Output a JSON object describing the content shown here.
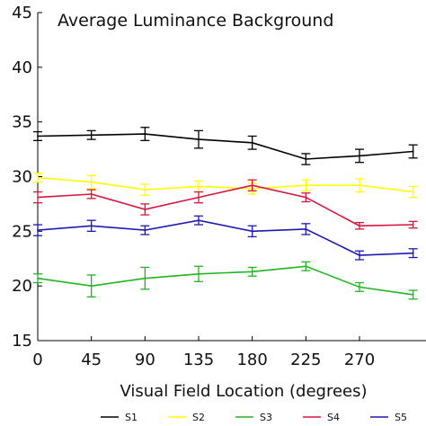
{
  "chart_data": {
    "type": "line",
    "title": "Average Luminance Background",
    "xlabel": "Visual Field Location (degrees)",
    "ylabel": "",
    "x": [
      0,
      45,
      90,
      135,
      180,
      225,
      270,
      315
    ],
    "x_ticks": [
      0,
      45,
      90,
      135,
      180,
      225,
      270
    ],
    "ylim": [
      15,
      45
    ],
    "y_ticks": [
      15,
      20,
      25,
      30,
      35,
      40,
      45
    ],
    "grid": false,
    "legend_placement": "bottom",
    "series": [
      {
        "name": "S1",
        "color": "#000000",
        "values": [
          33.7,
          33.8,
          33.9,
          33.4,
          33.1,
          31.6,
          31.9,
          32.3
        ],
        "errors": [
          0.4,
          0.4,
          0.6,
          0.8,
          0.6,
          0.5,
          0.6,
          0.6
        ]
      },
      {
        "name": "S2",
        "color": "#ffff00",
        "values": [
          29.9,
          29.5,
          28.8,
          29.1,
          28.9,
          29.2,
          29.2,
          28.6
        ],
        "errors": [
          0.4,
          0.6,
          0.5,
          0.5,
          0.5,
          0.5,
          0.6,
          0.5
        ]
      },
      {
        "name": "S3",
        "color": "#22b422",
        "values": [
          20.7,
          20.0,
          20.7,
          21.1,
          21.3,
          21.8,
          19.9,
          19.2
        ],
        "errors": [
          0.4,
          1.0,
          1.0,
          0.7,
          0.4,
          0.4,
          0.4,
          0.4
        ]
      },
      {
        "name": "S4",
        "color": "#d8153a",
        "values": [
          28.1,
          28.4,
          27.0,
          28.1,
          29.2,
          28.1,
          25.5,
          25.6
        ],
        "errors": [
          0.5,
          0.4,
          0.5,
          0.5,
          0.5,
          0.4,
          0.3,
          0.3
        ]
      },
      {
        "name": "S5",
        "color": "#1a1ab4",
        "values": [
          25.1,
          25.5,
          25.1,
          26.0,
          25.0,
          25.2,
          22.8,
          23.0
        ],
        "errors": [
          0.5,
          0.5,
          0.4,
          0.4,
          0.5,
          0.5,
          0.4,
          0.4
        ]
      }
    ]
  }
}
